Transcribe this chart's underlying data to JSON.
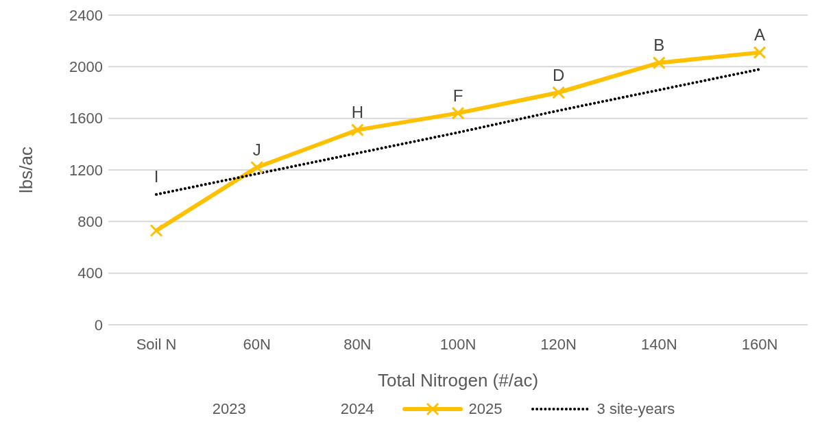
{
  "chart_data": {
    "type": "line",
    "xlabel": "Total Nitrogen (#/ac)",
    "ylabel": "lbs/ac",
    "categories": [
      "Soil N",
      "60N",
      "80N",
      "100N",
      "120N",
      "140N",
      "160N"
    ],
    "series": [
      {
        "name": "2023",
        "color": null,
        "values": [
          null,
          null,
          null,
          null,
          null,
          null,
          null
        ]
      },
      {
        "name": "2024",
        "color": null,
        "values": [
          null,
          null,
          null,
          null,
          null,
          null,
          null
        ]
      },
      {
        "name": "2025",
        "color": "#ffc000",
        "marker": "cross",
        "line_style": "solid",
        "values": [
          730,
          1220,
          1510,
          1640,
          1800,
          2030,
          2110
        ]
      },
      {
        "name": "3 site-years",
        "color": "#000000",
        "marker": "none",
        "line_style": "dotted",
        "values": [
          1010,
          1170,
          1330,
          1490,
          1660,
          1820,
          1980
        ]
      }
    ],
    "ylim": [
      0,
      2400
    ],
    "yticks": [
      0,
      400,
      800,
      1200,
      1600,
      2000,
      2400
    ],
    "grid": "y",
    "legend": "bottom",
    "annotations": [
      {
        "text": "I",
        "x": "Soil N",
        "y": 1010
      },
      {
        "text": "J",
        "x": "60N",
        "y": 1220
      },
      {
        "text": "H",
        "x": "80N",
        "y": 1510
      },
      {
        "text": "F",
        "x": "100N",
        "y": 1640
      },
      {
        "text": "D",
        "x": "120N",
        "y": 1800
      },
      {
        "text": "B",
        "x": "140N",
        "y": 2030
      },
      {
        "text": "A",
        "x": "160N",
        "y": 2110
      }
    ]
  }
}
